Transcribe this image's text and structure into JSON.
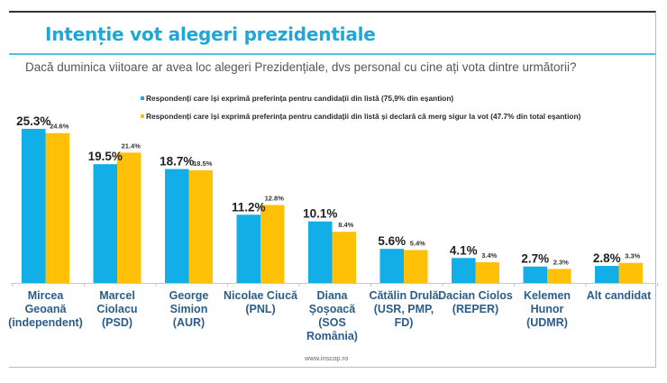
{
  "title": "Intenție vot alegeri prezidentiale",
  "question": "Dacă duminica viitoare ar avea loc alegeri Prezidențiale, dvs personal cu cine ați vota dintre următorii?",
  "source": "www.inscop.ro",
  "colors": {
    "series1": "#11aee8",
    "series2": "#ffc107",
    "title": "#1fa7d8",
    "category_label": "#2b5d8a"
  },
  "chart_data": {
    "type": "bar",
    "title": "Intenție vot alegeri prezidentiale",
    "xlabel": "",
    "ylabel": "",
    "ylim": [
      0,
      27
    ],
    "grid": false,
    "legend_position": "top",
    "categories": [
      [
        "Mircea",
        "Geoană",
        "(independent)"
      ],
      [
        "Marcel",
        "Ciolacu",
        "(PSD)"
      ],
      [
        "George",
        "Simion",
        "(AUR)"
      ],
      [
        "Nicolae Ciucă",
        "(PNL)"
      ],
      [
        "Diana",
        "Șoșoacă",
        "(SOS",
        "România)"
      ],
      [
        "Cătălin Drulă",
        "(USR, PMP,",
        "FD)"
      ],
      [
        "Dacian Ciolos",
        "(REPER)"
      ],
      [
        "Kelemen",
        "Hunor",
        "(UDMR)"
      ],
      [
        "Alt candidat"
      ]
    ],
    "series": [
      {
        "name": "Respondenți care își exprimă preferința pentru candidații din listă (75,9% din eșantion)",
        "values": [
          25.3,
          19.5,
          18.7,
          11.2,
          10.1,
          5.6,
          4.1,
          2.7,
          2.8
        ],
        "labels": [
          "25.3%",
          "19.5%",
          "18.7%",
          "11.2%",
          "10.1%",
          "5.6%",
          "4.1%",
          "2.7%",
          "2.8%"
        ]
      },
      {
        "name": "Respondenți care își exprimă preferința pentru candidații din listă și declară că merg sigur la vot (47.7% din total eșantion)",
        "values": [
          24.6,
          21.4,
          18.5,
          12.8,
          8.4,
          5.4,
          3.4,
          2.3,
          3.3
        ],
        "labels": [
          "24.6%",
          "21.4%",
          "18.5%",
          "12.8%",
          "8.4%",
          "5.4%",
          "3.4%",
          "2.3%",
          "3.3%"
        ]
      }
    ]
  }
}
